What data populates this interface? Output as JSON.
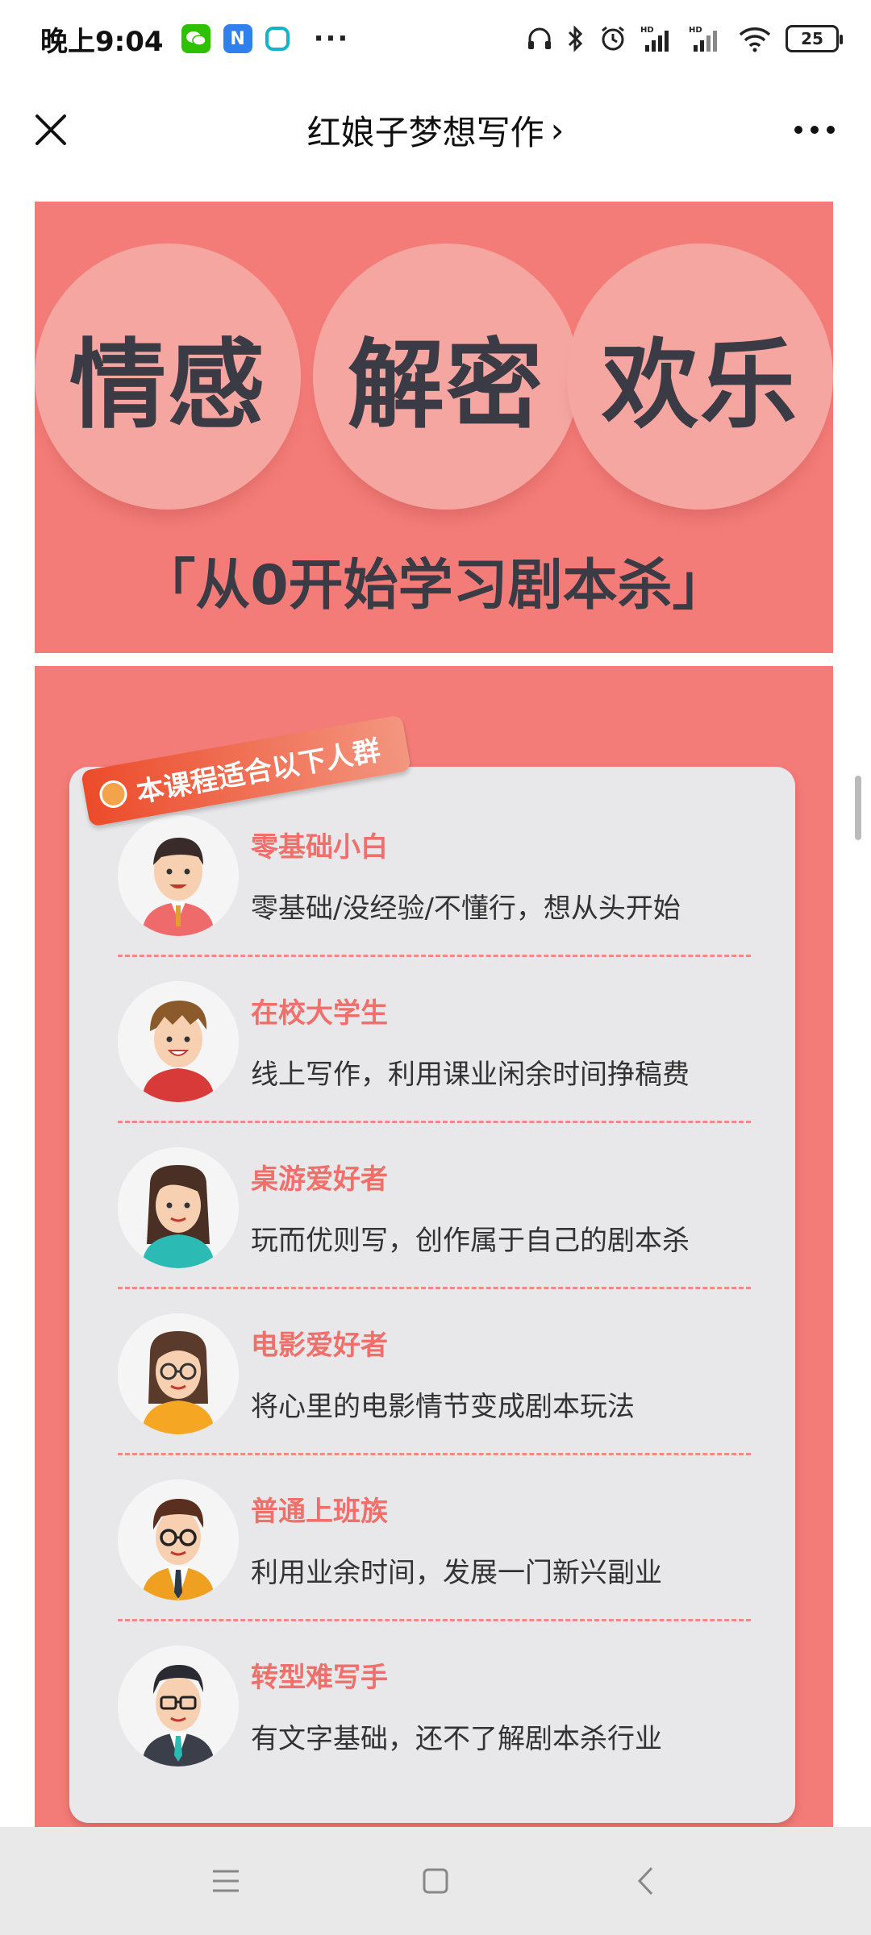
{
  "status_bar": {
    "time": "晚上9:04",
    "more": "···",
    "battery": "25"
  },
  "nav": {
    "title": "红娘子梦想写作",
    "chevron": "›"
  },
  "banner": {
    "words": [
      "情感",
      "解密",
      "欢乐"
    ],
    "subtitle": "「从0开始学习剧本杀」"
  },
  "panel": {
    "tag": "本课程适合以下人群",
    "items": [
      {
        "title": "零基础小白",
        "desc": "零基础/没经验/不懂行，想从头开始"
      },
      {
        "title": "在校大学生",
        "desc": "线上写作，利用课业闲余时间挣稿费"
      },
      {
        "title": "桌游爱好者",
        "desc": "玩而优则写，创作属于自己的剧本杀"
      },
      {
        "title": "电影爱好者",
        "desc": "将心里的电影情节变成剧本玩法"
      },
      {
        "title": "普通上班族",
        "desc": "利用业余时间，发展一门新兴副业"
      },
      {
        "title": "转型难写手",
        "desc": "有文字基础，还不了解剧本杀行业"
      }
    ]
  },
  "colors": {
    "accent": "#f47c78",
    "title_red": "#ef6f6a",
    "dark_text": "#3b3b45"
  }
}
